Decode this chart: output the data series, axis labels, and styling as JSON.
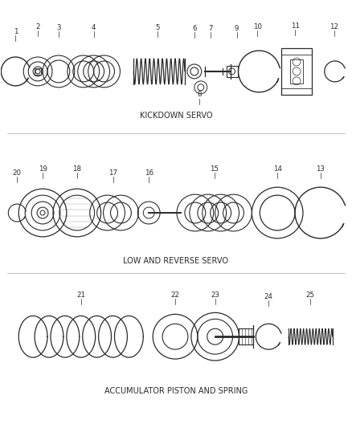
{
  "bg_color": "#ffffff",
  "line_color": "#2a2a2a",
  "section1_label": "KICKDOWN SERVO",
  "section2_label": "LOW AND REVERSE SERVO",
  "section3_label": "ACCUMULATOR PISTON AND SPRING",
  "label_fontsize": 7.0,
  "part_fontsize": 6.2
}
